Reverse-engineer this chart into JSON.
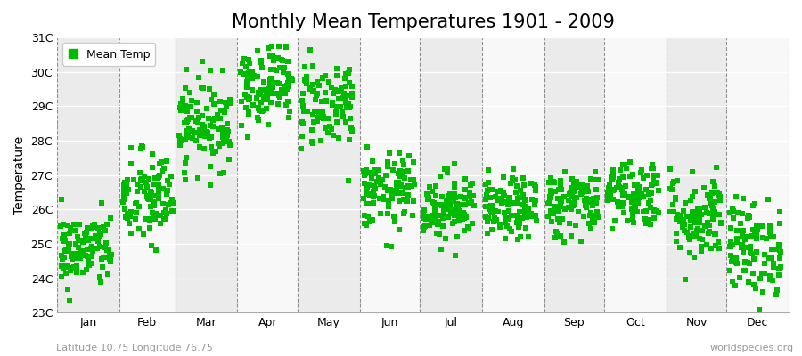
{
  "title": "Monthly Mean Temperatures 1901 - 2009",
  "ylabel": "Temperature",
  "xlabel_bottom_left": "Latitude 10.75 Longitude 76.75",
  "xlabel_bottom_right": "worldspecies.org",
  "legend_label": "Mean Temp",
  "marker_color": "#00BB00",
  "fig_bg_color": "#FFFFFF",
  "plot_bg_color": "#FFFFFF",
  "band_color_odd": "#EBEBEB",
  "band_color_even": "#F8F8F8",
  "ylim": [
    23,
    31
  ],
  "yticks": [
    23,
    24,
    25,
    26,
    27,
    28,
    29,
    30,
    31
  ],
  "ytick_labels": [
    "23C",
    "24C",
    "25C",
    "26C",
    "27C",
    "28C",
    "29C",
    "30C",
    "31C"
  ],
  "months": [
    "Jan",
    "Feb",
    "Mar",
    "Apr",
    "May",
    "Jun",
    "Jul",
    "Aug",
    "Sep",
    "Oct",
    "Nov",
    "Dec"
  ],
  "month_mean_temps": [
    24.8,
    26.3,
    28.5,
    29.7,
    29.1,
    26.5,
    26.1,
    26.0,
    26.2,
    26.5,
    25.8,
    24.9
  ],
  "month_std_temps": [
    0.55,
    0.7,
    0.65,
    0.6,
    0.65,
    0.55,
    0.5,
    0.45,
    0.5,
    0.5,
    0.65,
    0.7
  ],
  "n_years": 109,
  "seed": 42,
  "title_fontsize": 15,
  "axis_label_fontsize": 10,
  "tick_fontsize": 9,
  "legend_fontsize": 9,
  "marker_size": 18,
  "dpi": 100,
  "fig_width": 9.0,
  "fig_height": 4.0
}
